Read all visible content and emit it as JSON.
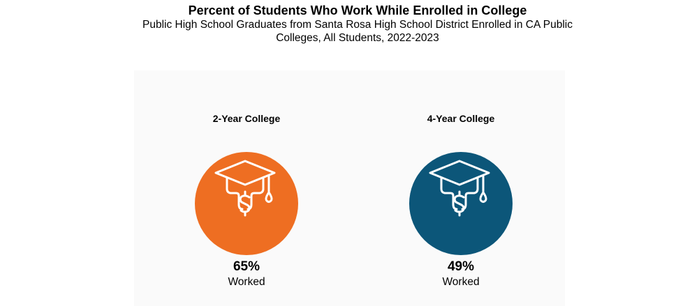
{
  "chart_data": {
    "type": "table",
    "title": "Percent of Students Who Work While Enrolled in College",
    "subtitle": "Public High School Graduates from Santa Rosa High School District Enrolled in CA Public Colleges, All Students, 2022-2023",
    "categories": [
      "2-Year College",
      "4-Year College"
    ],
    "series": [
      {
        "name": "Worked",
        "values": [
          65,
          49
        ]
      }
    ],
    "items": [
      {
        "label": "2-Year College",
        "value_text": "65%",
        "caption": "Worked",
        "color": "#ee6e22",
        "icon": "graduation-cap-dollar-icon"
      },
      {
        "label": "4-Year College",
        "value_text": "49%",
        "caption": "Worked",
        "color": "#0c5679",
        "icon": "graduation-cap-dollar-icon"
      }
    ]
  }
}
